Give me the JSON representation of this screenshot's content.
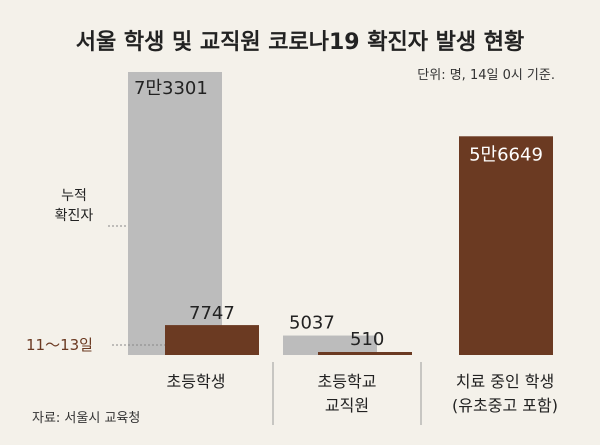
{
  "chart_data": {
    "type": "bar",
    "title": "서울 학생 및 교직원 코로나19 확진자 발생 현황",
    "unit": "단위: 명, 14일 0시 기준.",
    "source": "자료: 서울시 교육청",
    "categories": [
      [
        "초등학생"
      ],
      [
        "초등학교",
        "교직원"
      ],
      [
        "치료 중인 학생",
        "(유초중고 포함)"
      ]
    ],
    "series": [
      {
        "name": "누적 확진자",
        "label_lines": [
          "누적",
          "확진자"
        ],
        "color": "#bcbcbc",
        "values": [
          73301,
          5037,
          null
        ],
        "labels": [
          "7만3301",
          "5037",
          ""
        ]
      },
      {
        "name": "11～13일",
        "label_lines": [
          "11～13일"
        ],
        "color": "#6b3a22",
        "values": [
          7747,
          510,
          null
        ],
        "labels": [
          "7747",
          "510",
          ""
        ]
      },
      {
        "name": "",
        "color": "#6b3a22",
        "values": [
          null,
          null,
          56649
        ],
        "labels": [
          "",
          "",
          "5만6649"
        ]
      }
    ],
    "ylim": [
      0,
      73301
    ]
  },
  "colors": {
    "background": "#f4f1ea",
    "cumulative": "#bcbcbc",
    "recent": "#6b3a22",
    "divider": "#9a9a9a"
  }
}
